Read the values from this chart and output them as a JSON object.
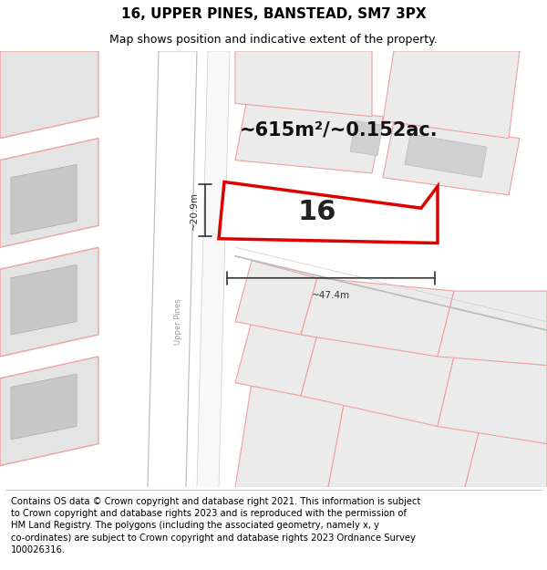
{
  "title": "16, UPPER PINES, BANSTEAD, SM7 3PX",
  "subtitle": "Map shows position and indicative extent of the property.",
  "footer": "Contains OS data © Crown copyright and database right 2021. This information is subject\nto Crown copyright and database rights 2023 and is reproduced with the permission of\nHM Land Registry. The polygons (including the associated geometry, namely x, y\nco-ordinates) are subject to Crown copyright and database rights 2023 Ordnance Survey\n100026316.",
  "area_label": "~615m²/~0.152ac.",
  "width_label": "~47.4m",
  "height_label": "~20.9m",
  "property_label": "16",
  "street_label": "Upper Pines",
  "map_bg": "#f0f0f0",
  "road_color": "#ffffff",
  "road_border_color": "#bbbbbb",
  "boundary_color": "#f0a0a0",
  "highlight_color": "#dd0000",
  "dim_color": "#333333",
  "title_fontsize": 11,
  "subtitle_fontsize": 9,
  "footer_fontsize": 7.2,
  "area_label_fontsize": 15,
  "property_label_fontsize": 22
}
